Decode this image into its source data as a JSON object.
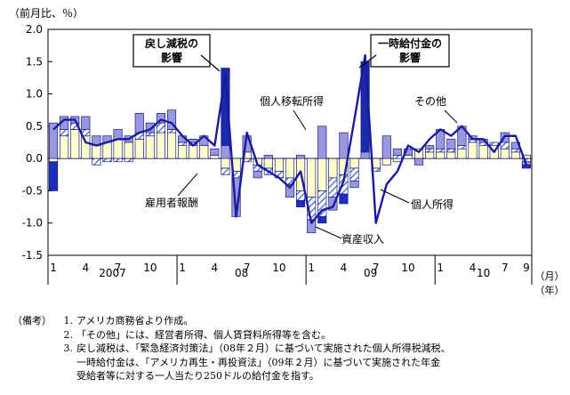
{
  "chart_data": {
    "type": "bar",
    "ylabel": "（前月比、％）",
    "ylim": [
      -1.5,
      2.0
    ],
    "yticks": [
      "2.0",
      "1.5",
      "1.0",
      "0.5",
      "0.0",
      "-0.5",
      "-1.0",
      "-1.5"
    ],
    "ytick_values": [
      2.0,
      1.5,
      1.0,
      0.5,
      0.0,
      -0.5,
      -1.0,
      -1.5
    ],
    "month_ticks": [
      "1",
      "4",
      "7",
      "10",
      "1",
      "4",
      "7",
      "10",
      "1",
      "4",
      "7",
      "10",
      "1",
      "4",
      "7",
      "9"
    ],
    "month_tick_index": [
      0,
      3,
      6,
      9,
      12,
      15,
      18,
      21,
      24,
      27,
      30,
      33,
      36,
      39,
      42,
      44
    ],
    "years": [
      {
        "label": "2007",
        "start": 0,
        "end": 11
      },
      {
        "label": "08",
        "start": 12,
        "end": 23
      },
      {
        "label": "09",
        "start": 24,
        "end": 35
      },
      {
        "label": "10",
        "start": 36,
        "end": 44
      }
    ],
    "x_unit_month": "（月）",
    "x_unit_year": "（年）",
    "annotations": {
      "tax_rebate": "戻し減税の\n影響",
      "lump_sum": "一時給付金の\n影響",
      "transfer": "個人移転所得",
      "other": "その他",
      "employee_comp": "雇用者報酬",
      "personal_income": "個人所得",
      "asset_income": "資産収入"
    },
    "series": [
      {
        "name": "雇用者報酬",
        "color": "#ffffcc",
        "values": [
          -0.05,
          0.35,
          0.45,
          0.35,
          0.2,
          0.25,
          0.3,
          0.25,
          0.3,
          0.35,
          0.4,
          0.4,
          0.2,
          0.2,
          0.2,
          0.05,
          -0.15,
          -0.2,
          0.1,
          -0.1,
          -0.15,
          -0.2,
          -0.3,
          -0.5,
          -0.6,
          -0.5,
          -0.3,
          -0.25,
          -0.15,
          0.0,
          -0.15,
          -0.1,
          -0.05,
          0.05,
          0.15,
          0.1,
          0.1,
          0.1,
          0.15,
          0.25,
          0.2,
          0.2,
          0.15,
          0.1,
          0.05
        ]
      },
      {
        "name": "資産収入",
        "color": "#8fb0e8",
        "values": [
          0.0,
          0.1,
          0.1,
          0.1,
          -0.1,
          -0.05,
          -0.05,
          -0.05,
          0.1,
          0.05,
          0.15,
          0.05,
          0.05,
          0.05,
          0.0,
          0.0,
          -0.1,
          -0.1,
          -0.05,
          -0.1,
          -0.1,
          -0.1,
          -0.1,
          -0.15,
          -0.35,
          -0.4,
          -0.3,
          -0.3,
          -0.2,
          0.0,
          -0.05,
          0.0,
          0.05,
          0.0,
          0.0,
          0.05,
          0.05,
          0.05,
          0.05,
          0.05,
          0.05,
          0.05,
          0.1,
          0.05,
          -0.05
        ]
      },
      {
        "name": "個人移転所得",
        "color": "#9898e0",
        "values": [
          0.55,
          0.2,
          0.1,
          0.2,
          0.15,
          0.1,
          0.15,
          0.1,
          0.3,
          0.15,
          0.15,
          0.3,
          0.1,
          0.05,
          0.15,
          0.1,
          0.2,
          -0.6,
          0.25,
          -0.1,
          0.05,
          0.0,
          -0.2,
          0.05,
          -0.2,
          0.5,
          -0.2,
          0.4,
          -0.1,
          0.1,
          0.0,
          0.35,
          0.1,
          0.1,
          -0.1,
          0.05,
          0.3,
          0.15,
          0.3,
          0.05,
          0.05,
          0.0,
          0.15,
          0.1,
          -0.05
        ]
      },
      {
        "name": "その他",
        "color": "#1f2ec0",
        "values": [
          -0.45,
          0.0,
          0.0,
          0.0,
          0.0,
          0.0,
          0.0,
          0.0,
          0.0,
          0.0,
          0.0,
          0.0,
          0.0,
          0.0,
          0.0,
          0.0,
          0.0,
          0.0,
          0.0,
          0.0,
          0.0,
          0.0,
          0.0,
          -0.1,
          0.0,
          -0.1,
          0.0,
          -0.15,
          0.0,
          0.0,
          0.0,
          0.0,
          0.0,
          0.0,
          0.0,
          0.0,
          0.0,
          0.0,
          0.0,
          0.0,
          0.0,
          0.0,
          0.0,
          0.0,
          -0.05
        ]
      },
      {
        "name": "戻し減税・一時給付金の影響",
        "color": "#1a2aa8",
        "values": [
          0,
          0,
          0,
          0,
          0,
          0,
          0,
          0,
          0,
          0,
          0,
          0,
          0,
          0,
          0,
          0,
          1.2,
          0,
          0,
          0,
          0,
          0,
          0,
          0,
          0,
          0,
          0,
          0,
          0,
          1.4,
          0,
          0,
          0,
          0,
          0,
          0,
          0,
          0,
          0,
          0,
          0,
          0,
          0,
          0,
          0
        ]
      },
      {
        "name": "個人所得",
        "color": "#1a1a9e",
        "values": [
          0.45,
          0.6,
          0.6,
          0.25,
          0.2,
          0.25,
          0.3,
          0.3,
          0.4,
          0.45,
          0.6,
          0.55,
          0.35,
          0.2,
          0.35,
          0.2,
          1.3,
          -0.9,
          0.4,
          -0.1,
          -0.2,
          -0.3,
          -0.45,
          -0.2,
          -1.0,
          -0.8,
          -0.75,
          -0.35,
          0.6,
          1.6,
          -1.0,
          -0.4,
          -0.2,
          0.2,
          0.1,
          0.3,
          0.45,
          0.35,
          0.5,
          0.3,
          0.3,
          0.1,
          0.35,
          0.35,
          -0.1
        ]
      }
    ]
  },
  "notes": {
    "head": "（備考）",
    "items": [
      {
        "num": "1.",
        "lines": [
          "アメリカ商務省より作成。"
        ]
      },
      {
        "num": "2.",
        "lines": [
          "「その他」には、経営者所得、個人賃貸料所得等を含む。"
        ]
      },
      {
        "num": "3.",
        "lines": [
          "戻し減税は、「緊急経済対策法」（08年２月）に基づいて実施された個人所得税減税、",
          "一時給付金は、「アメリカ再生・再投資法」（09年２月）に基づいて実施された年金",
          "受給者等に対する一人当たり250ドルの給付金を指す。"
        ]
      }
    ]
  }
}
